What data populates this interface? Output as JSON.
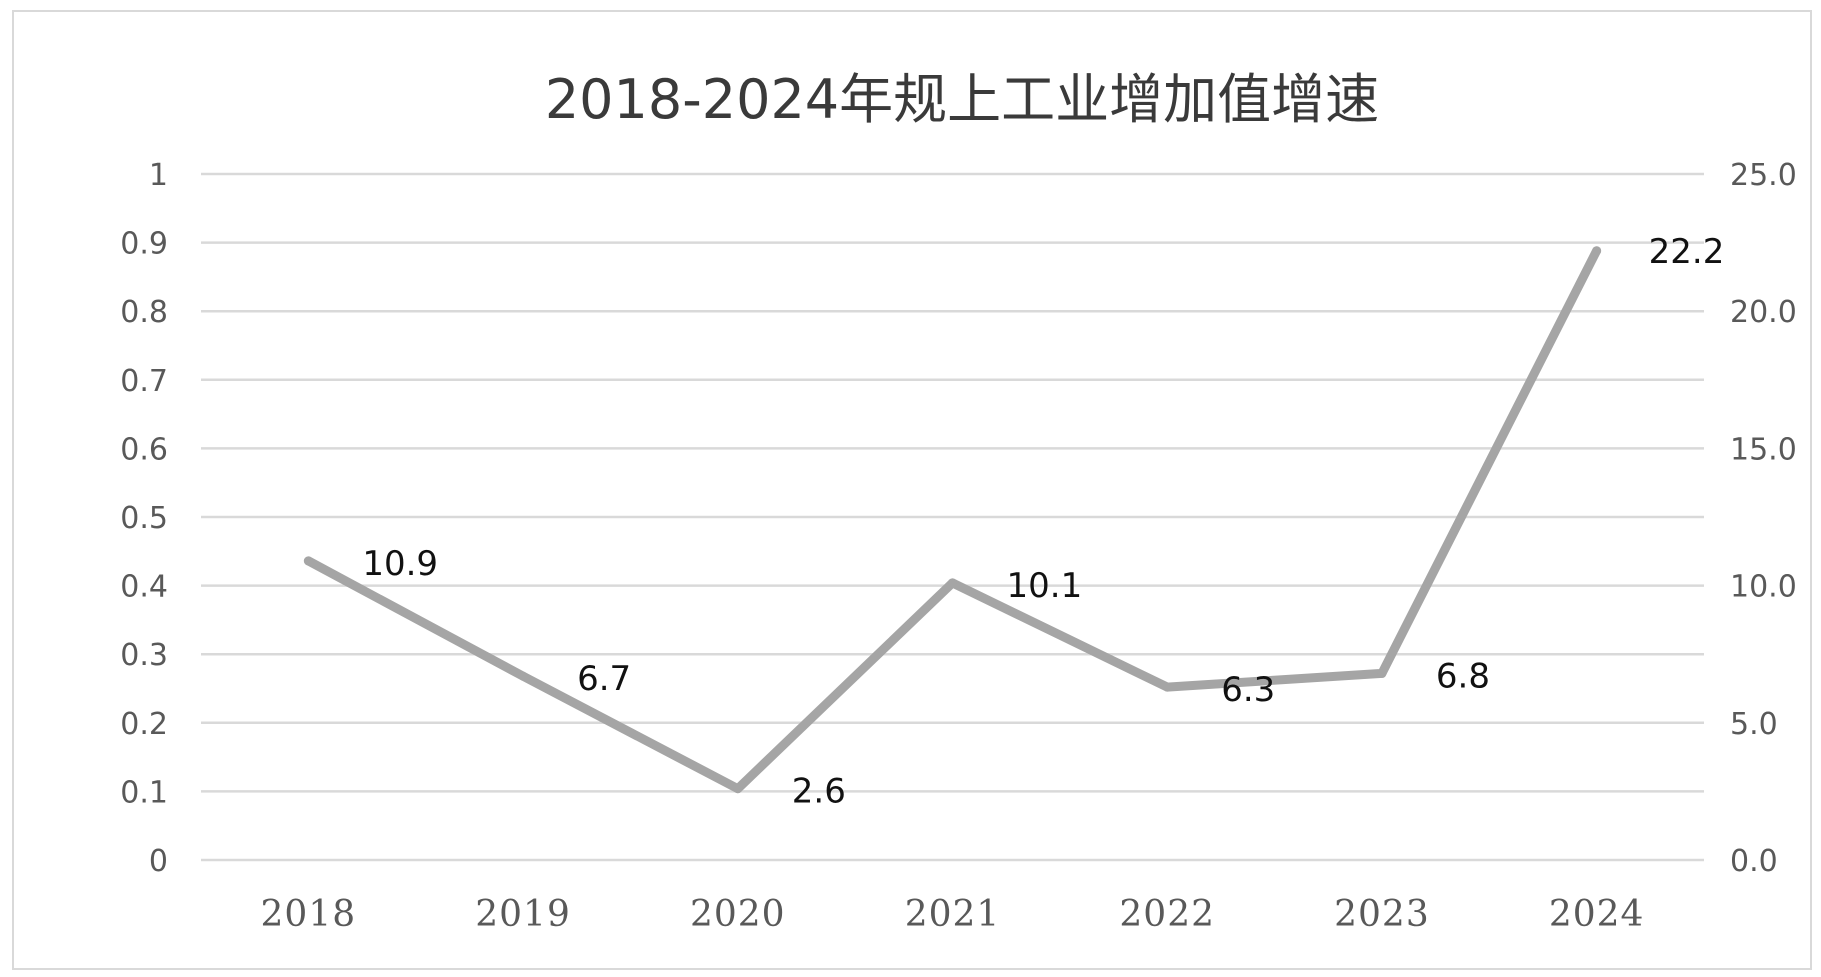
{
  "chart_data": {
    "type": "line",
    "title": "2018-2024年规上工业增加值增速",
    "categories": [
      "2018",
      "2019",
      "2020",
      "2021",
      "2022",
      "2023",
      "2024"
    ],
    "series": [
      {
        "values": [
          10.9,
          6.7,
          2.6,
          10.1,
          6.3,
          6.8,
          22.2
        ],
        "data_labels": [
          "10.9",
          "6.7",
          "2.6",
          "10.1",
          "6.3",
          "6.8",
          "22.2"
        ],
        "axis": "right",
        "color": "#A5A5A5"
      }
    ],
    "y_left": {
      "ticks": [
        "0",
        "0.1",
        "0.2",
        "0.3",
        "0.4",
        "0.5",
        "0.6",
        "0.7",
        "0.8",
        "0.9",
        "1"
      ],
      "ylim": [
        0,
        1
      ]
    },
    "y_right": {
      "ticks": [
        "0.0",
        "5.0",
        "10.0",
        "15.0",
        "20.0",
        "25.0"
      ],
      "ylim": [
        0,
        25
      ]
    },
    "xlabel": "",
    "ylabel": "",
    "grid": true,
    "legend": "none"
  }
}
